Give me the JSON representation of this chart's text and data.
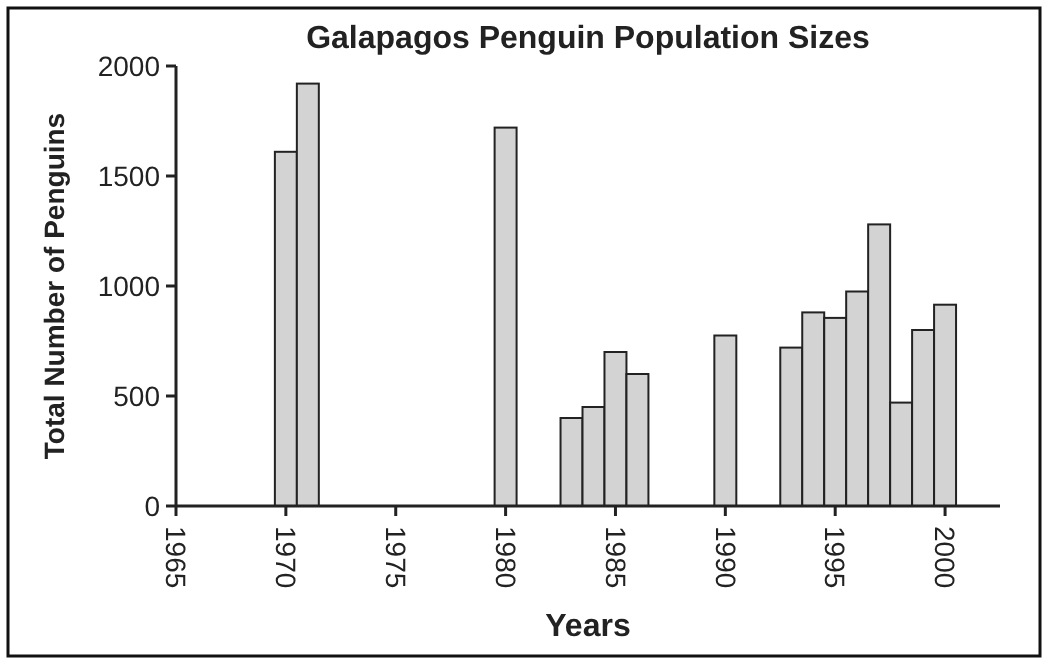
{
  "chart_data": {
    "type": "bar",
    "title": "Galapagos Penguin Population Sizes",
    "xlabel": "Years",
    "ylabel": "Total Number of Penguins",
    "x": [
      1970,
      1971,
      1980,
      1983,
      1984,
      1985,
      1986,
      1990,
      1993,
      1994,
      1995,
      1996,
      1997,
      1998,
      1999,
      2000
    ],
    "values": [
      1610,
      1920,
      1720,
      400,
      450,
      700,
      600,
      775,
      720,
      880,
      855,
      975,
      1280,
      470,
      800,
      915
    ],
    "color": "#d3d3d3",
    "xlim": [
      1965,
      2002.5
    ],
    "xticks": [
      1965,
      1970,
      1975,
      1980,
      1985,
      1990,
      1995,
      2000
    ],
    "ylim": [
      0,
      2000
    ],
    "yticks": [
      0,
      500,
      1000,
      1500,
      2000
    ],
    "grid": false
  }
}
